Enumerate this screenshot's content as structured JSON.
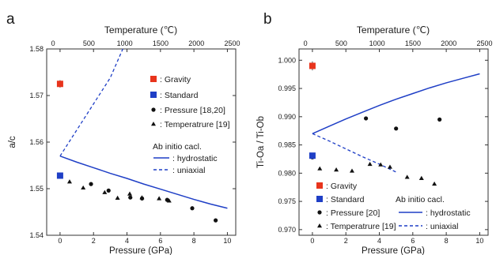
{
  "colors": {
    "gravity": "#e8341c",
    "standard": "#1f3fc6",
    "ab_initio": "#1f3fc6",
    "points": "#111111",
    "frame": "#333333"
  },
  "chart_data": [
    {
      "panel": "a",
      "type": "scatter",
      "xlabel": "Pressure (GPa)",
      "x2label": "Temperature (℃)",
      "ylabel": "a/c",
      "xlim": [
        -0.8,
        10.5
      ],
      "ylim": [
        1.54,
        1.58
      ],
      "x2lim": [
        -90,
        2550
      ],
      "xticks": [
        0,
        2,
        4,
        6,
        8,
        10
      ],
      "x2ticks": [
        0,
        500,
        1000,
        1500,
        2000,
        2500
      ],
      "yticks": [
        1.54,
        1.55,
        1.56,
        1.57,
        1.58
      ],
      "xtick_labels": [
        "0",
        "2",
        "4",
        "6",
        "8",
        "10"
      ],
      "x2tick_labels": [
        "0",
        "500",
        "1000",
        "1500",
        "2000",
        "2500"
      ],
      "ytick_labels": [
        "1.54",
        "1.55",
        "1.56",
        "1.57",
        "1.58"
      ],
      "gravity": {
        "x": 0.0,
        "y": 1.5725,
        "err": 0.0008
      },
      "standard": {
        "x": 0.0,
        "y": 1.5528
      },
      "pressure_points": [
        [
          0.0,
          1.553
        ],
        [
          1.85,
          1.551
        ],
        [
          2.9,
          1.5496
        ],
        [
          4.2,
          1.5481
        ],
        [
          4.9,
          1.5479
        ],
        [
          6.4,
          1.5476
        ],
        [
          7.9,
          1.5458
        ],
        [
          9.3,
          1.5432
        ]
      ],
      "temperature_points_T": [
        [
          230,
          1.5515
        ],
        [
          420,
          1.5502
        ],
        [
          720,
          1.5492
        ],
        [
          900,
          1.548
        ],
        [
          1070,
          1.5489
        ],
        [
          1240,
          1.5481
        ],
        [
          1480,
          1.5479
        ],
        [
          1620,
          1.5474
        ]
      ],
      "hydrostatic": [
        [
          0,
          1.557
        ],
        [
          1,
          1.5557
        ],
        [
          2,
          1.5545
        ],
        [
          3,
          1.5533
        ],
        [
          4,
          1.5522
        ],
        [
          5,
          1.551
        ],
        [
          6,
          1.5499
        ],
        [
          7,
          1.5488
        ],
        [
          8,
          1.5477
        ],
        [
          9,
          1.5467
        ],
        [
          10,
          1.5458
        ]
      ],
      "uniaxial": [
        [
          0,
          1.557
        ],
        [
          1,
          1.5626
        ],
        [
          2,
          1.5682
        ],
        [
          3,
          1.5738
        ],
        [
          3.75,
          1.58
        ]
      ],
      "legend": {
        "gravity": ": Gravity",
        "standard": ": Standard",
        "pressure": ": Pressure [18,20]",
        "temperature": ": Temperatrure [19]",
        "ab_initio_title": "Ab initio cacl.",
        "hydrostatic": ": hydrostatic",
        "uniaxial": ": uniaxial"
      }
    },
    {
      "panel": "b",
      "type": "scatter",
      "xlabel": "Pressure (GPa)",
      "x2label": "Temperature (℃)",
      "ylabel": "Ti-Oa / Ti-Ob",
      "xlim": [
        -0.8,
        10.5
      ],
      "ylim": [
        0.969,
        1.002
      ],
      "x2lim": [
        -90,
        2550
      ],
      "xticks": [
        0,
        2,
        4,
        6,
        8,
        10
      ],
      "x2ticks": [
        0,
        500,
        1000,
        1500,
        2000,
        2500
      ],
      "yticks": [
        0.97,
        0.975,
        0.98,
        0.985,
        0.99,
        0.995,
        1.0
      ],
      "xtick_labels": [
        "0",
        "2",
        "4",
        "6",
        "8",
        "10"
      ],
      "x2tick_labels": [
        "0",
        "500",
        "1000",
        "1500",
        "2000",
        "2500"
      ],
      "ytick_labels": [
        "0.970",
        "0.975",
        "0.980",
        "0.985",
        "0.990",
        "0.995",
        "1.000"
      ],
      "gravity": {
        "x": 0.0,
        "y": 0.999,
        "err": 0.0008
      },
      "standard": {
        "x": 0.0,
        "y": 0.9831
      },
      "pressure_points": [
        [
          0.0,
          0.9828
        ],
        [
          3.2,
          0.9897
        ],
        [
          5.0,
          0.9879
        ],
        [
          7.6,
          0.9895
        ]
      ],
      "temperature_points_T": [
        [
          200,
          0.9808
        ],
        [
          430,
          0.9806
        ],
        [
          650,
          0.9804
        ],
        [
          900,
          0.9816
        ],
        [
          1050,
          0.9815
        ],
        [
          1180,
          0.9811
        ],
        [
          1420,
          0.9793
        ],
        [
          1620,
          0.9791
        ],
        [
          1800,
          0.9781
        ]
      ],
      "hydrostatic": [
        [
          0,
          0.987
        ],
        [
          1,
          0.9883
        ],
        [
          2,
          0.9896
        ],
        [
          3,
          0.9908
        ],
        [
          4,
          0.992
        ],
        [
          5,
          0.9931
        ],
        [
          6,
          0.9941
        ],
        [
          7,
          0.9951
        ],
        [
          8,
          0.996
        ],
        [
          9,
          0.9968
        ],
        [
          10,
          0.9976
        ]
      ],
      "uniaxial": [
        [
          0,
          0.987
        ],
        [
          1,
          0.9857
        ],
        [
          2,
          0.9843
        ],
        [
          3,
          0.9829
        ],
        [
          4,
          0.9816
        ],
        [
          5,
          0.9802
        ]
      ],
      "legend": {
        "gravity": ": Gravity",
        "standard": ": Standard",
        "pressure": ": Pressure [20]",
        "temperature": ": Temperatrure [19]",
        "ab_initio_title": "Ab initio cacl.",
        "hydrostatic": ": hydrostatic",
        "uniaxial": ": uniaxial"
      }
    }
  ]
}
